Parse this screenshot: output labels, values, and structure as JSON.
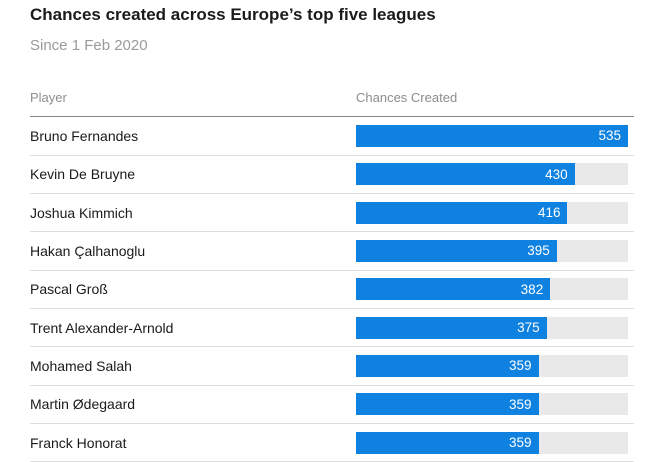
{
  "header": {
    "title": "Chances created across Europe’s top five leagues",
    "subtitle": "Since 1 Feb 2020"
  },
  "table": {
    "columns": [
      "Player",
      "Chances Created"
    ]
  },
  "chart_data": {
    "type": "bar",
    "orientation": "horizontal",
    "title": "Chances created across Europe’s top five leagues",
    "subtitle": "Since 1 Feb 2020",
    "xlabel": "Chances Created",
    "ylabel": "Player",
    "xlim": [
      0,
      535
    ],
    "categories": [
      "Bruno Fernandes",
      "Kevin De Bruyne",
      "Joshua Kimmich",
      "Hakan Çalhanoglu",
      "Pascal Groß",
      "Trent Alexander-Arnold",
      "Mohamed Salah",
      "Martin Ødegaard",
      "Franck Honorat"
    ],
    "values": [
      535,
      430,
      416,
      395,
      382,
      375,
      359,
      359,
      359
    ],
    "bar_color": "#0f81e0",
    "track_color": "#e9e9e9"
  }
}
